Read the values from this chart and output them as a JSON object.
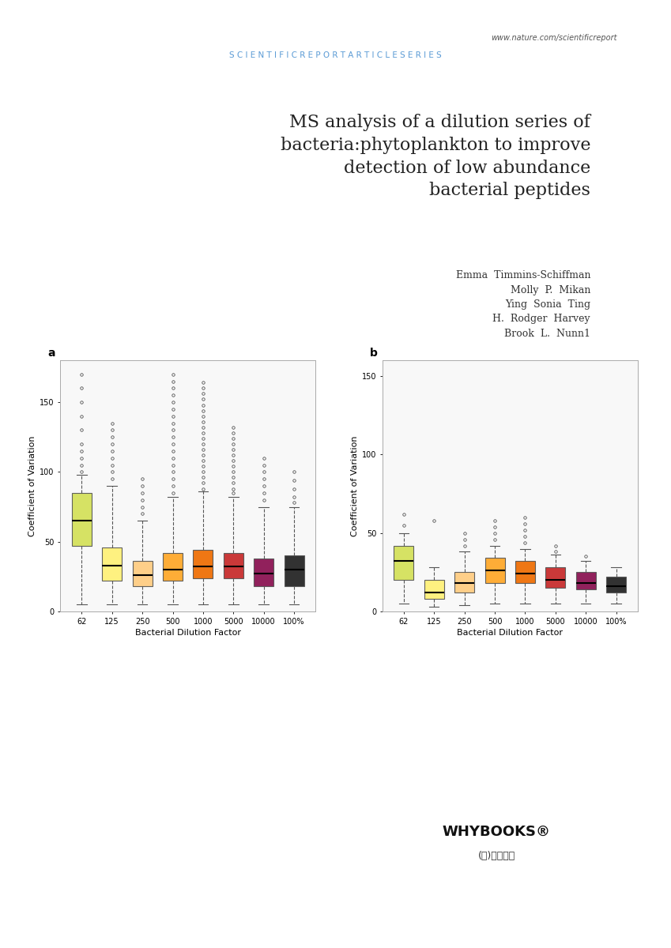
{
  "title_line1": "MS analysis of a dilution series of",
  "title_line2": "bacteria:phytoplankton to improve",
  "title_line3": "detection of low abundance",
  "title_line4": "bacterial peptides",
  "authors": [
    "Emma  Timmins-Schiffman",
    "Molly  P.  Mikan",
    "Ying  Sonia  Ting",
    "H.  Rodger  Harvey",
    "Brook  L.  Nunn1"
  ],
  "journal_url": "www.nature.com/scientificreport",
  "journal_series": "S C I E N T I F I C R E P O R T A R T I C L E S E R I E S",
  "categories": [
    "62",
    "125",
    "250",
    "500",
    "1000",
    "5000",
    "10000",
    "100%"
  ],
  "xlabel": "Bacterial Dilution Factor",
  "ylabel": "Coefficient of Variation",
  "panel_a_label": "a",
  "panel_b_label": "b",
  "colors": [
    "#d4e157",
    "#fff176",
    "#ffcc80",
    "#ffa726",
    "#ef6c00",
    "#c62828",
    "#880e4f",
    "#212121"
  ],
  "panel_a": {
    "medians": [
      65,
      33,
      26,
      30,
      32,
      32,
      27,
      30
    ],
    "q1": [
      47,
      22,
      18,
      22,
      24,
      24,
      18,
      18
    ],
    "q3": [
      85,
      46,
      36,
      42,
      44,
      42,
      38,
      40
    ],
    "whislo": [
      5,
      5,
      5,
      5,
      5,
      5,
      5,
      5
    ],
    "whishi": [
      98,
      90,
      65,
      82,
      86,
      82,
      75,
      75
    ],
    "fliers_y": [
      [
        100,
        105,
        110,
        115,
        120,
        130,
        140,
        150,
        160,
        170
      ],
      [
        95,
        100,
        105,
        110,
        115,
        120,
        125,
        130,
        135
      ],
      [
        70,
        75,
        80,
        85,
        90,
        95
      ],
      [
        85,
        90,
        95,
        100,
        105,
        110,
        115,
        120,
        125,
        130,
        135,
        140,
        145,
        150,
        155,
        160,
        165,
        170
      ],
      [
        88,
        92,
        96,
        100,
        104,
        108,
        112,
        116,
        120,
        124,
        128,
        132,
        136,
        140,
        144,
        148,
        152,
        156,
        160,
        164
      ],
      [
        85,
        88,
        92,
        96,
        100,
        104,
        108,
        112,
        116,
        120,
        124,
        128,
        132
      ],
      [
        80,
        85,
        90,
        95,
        100,
        105,
        110
      ],
      [
        78,
        82,
        88,
        94,
        100
      ]
    ],
    "ylim": [
      0,
      180
    ],
    "yticks": [
      0,
      50,
      100,
      150
    ]
  },
  "panel_b": {
    "medians": [
      32,
      12,
      18,
      26,
      24,
      20,
      18,
      16
    ],
    "q1": [
      20,
      8,
      12,
      18,
      18,
      15,
      14,
      12
    ],
    "q3": [
      42,
      20,
      25,
      34,
      32,
      28,
      25,
      22
    ],
    "whislo": [
      5,
      3,
      4,
      5,
      5,
      5,
      5,
      5
    ],
    "whishi": [
      50,
      28,
      38,
      42,
      40,
      36,
      32,
      28
    ],
    "fliers_y": [
      [
        55,
        62
      ],
      [
        58
      ],
      [
        42,
        46,
        50
      ],
      [
        46,
        50,
        54,
        58
      ],
      [
        44,
        48,
        52,
        56,
        60
      ],
      [
        38,
        42
      ],
      [
        35
      ],
      []
    ],
    "ylim": [
      0,
      160
    ],
    "yticks": [
      0,
      50,
      100,
      150
    ]
  },
  "background_color": "#ffffff",
  "whybooks_text": "WHYBOOKS®",
  "whybooks_sub": "(주)와이북스"
}
